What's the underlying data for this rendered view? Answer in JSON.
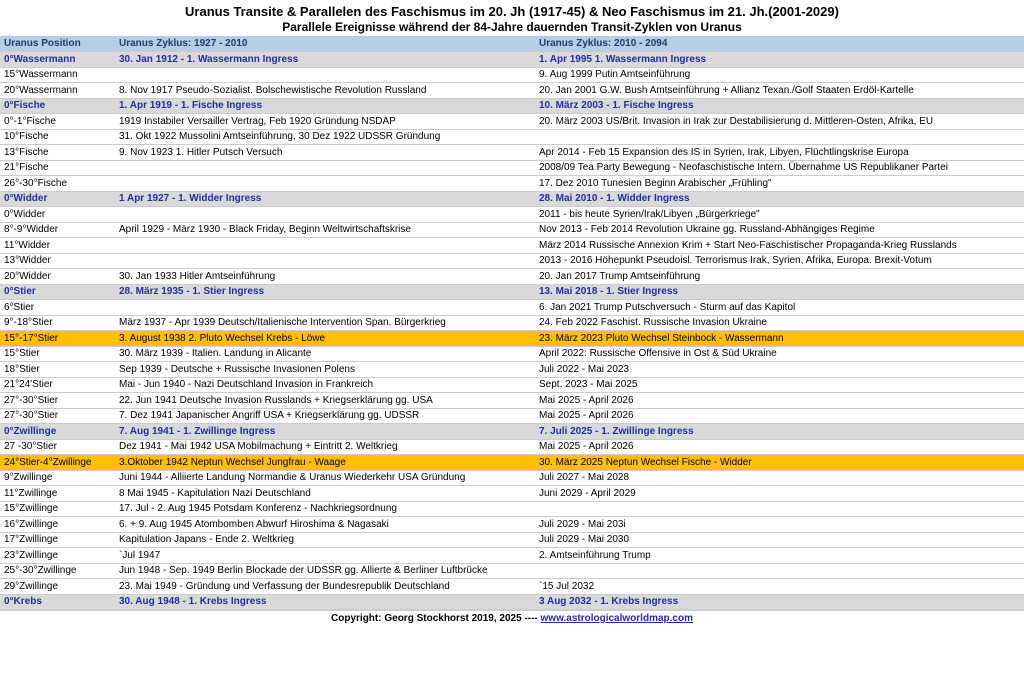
{
  "title": "Uranus Transite & Parallelen des Faschismus im 20. Jh (1917-45) & Neo Faschismus im 21. Jh.(2001-2029)",
  "subtitle": "Parallele Ereignisse während der 84-Jahre dauernden Transit-Zyklen von Uranus",
  "columns": {
    "pos": "Uranus Position",
    "cycle1": "Uranus Zyklus: 1927 - 2010",
    "cycle2": "Uranus Zyklus: 2010 - 2094"
  },
  "rows": [
    {
      "cls": "hl-gray ingress",
      "pos": "0°Wassermann",
      "c1": "30. Jan 1912 - 1. Wassermann Ingress",
      "c2": "1. Apr 1995 1. Wassermann Ingress"
    },
    {
      "cls": "",
      "pos": "15°Wassermann",
      "c1": "",
      "c2": "9. Aug 1999 Putin Amtseinführung"
    },
    {
      "cls": "",
      "pos": "20°Wassermann",
      "c1": "8. Nov 1917 Pseudo-Sozialist. Bolschewistische Revolution Russland",
      "c2": "20. Jan 2001 G.W. Bush Amtseinführung + Allianz Texan./Golf Staaten Erdöl-Kartelle"
    },
    {
      "cls": "hl-gray ingress",
      "pos": "0°Fische",
      "c1": "1. Apr 1919 - 1. Fische Ingress",
      "c2": "10. März 2003 - 1. Fische Ingress"
    },
    {
      "cls": "",
      "pos": "0°-1°Fische",
      "c1": "1919 Instabiler Versailler Vertrag, Feb 1920 Gründung NSDAP",
      "c2": "20. März 2003 US/Brit. Invasion in Irak zur Destabilisierung d. Mittleren-Osten, Afrika, EU"
    },
    {
      "cls": "",
      "pos": "10°Fische",
      "c1": "31. Okt 1922 Mussolini Amtseinführung, 30 Dez 1922 UDSSR Gründung",
      "c2": ""
    },
    {
      "cls": "",
      "pos": "13°Fische",
      "c1": "9. Nov 1923 1. Hitler Putsch Versuch",
      "c2": "Apr 2014 - Feb 15 Expansion des IS in Syrien, Irak, Libyen, Flüchtlingskrise Europa"
    },
    {
      "cls": "",
      "pos": "21°Fische",
      "c1": "",
      "c2": "2008/09 Tea Party Bewegung - Neofaschistische Intern. Übernahme US Republikaner Partei"
    },
    {
      "cls": "",
      "pos": "26°-30°Fische",
      "c1": "",
      "c2": "17. Dez 2010 Tunesien Beginn Arabischer „Frühling\""
    },
    {
      "cls": "hl-gray ingress",
      "pos": "0°Widder",
      "c1": "1 Apr 1927 - 1. Widder Ingress",
      "c2": "28. Mai 2010 - 1. Widder Ingress"
    },
    {
      "cls": "",
      "pos": "0°Widder",
      "c1": "",
      "c2": "2011 - bis heute  Syrien/Irak/Libyen „Bürgerkriege\""
    },
    {
      "cls": "",
      "pos": "8°-9°Widder",
      "c1": "April 1929 - März 1930 - Black Friday, Beginn Weltwirtschaftskrise",
      "c2": "Nov 2013 - Feb 2014  Revolution Ukraine gg. Russland-Abhängiges Regime"
    },
    {
      "cls": "",
      "pos": "11°Widder",
      "c1": "",
      "c2": "März 2014 Russische Annexion Krim + Start Neo-Faschistischer Propaganda-Krieg Russlands"
    },
    {
      "cls": "",
      "pos": "13°Widder",
      "c1": "",
      "c2": "2013 - 2016 Höhepunkt Pseudoisl. Terrorismus Irak, Syrien, Afrika, Europa. Brexit-Votum"
    },
    {
      "cls": "",
      "pos": "20°Widder",
      "c1": "30. Jan 1933  Hitler Amtseinführung",
      "c2": "20. Jan 2017 Trump Amtseinführung"
    },
    {
      "cls": "hl-gray ingress",
      "pos": "0°Stier",
      "c1": "28. März 1935 - 1. Stier Ingress",
      "c2": "13. Mai 2018 - 1. Stier Ingress"
    },
    {
      "cls": "",
      "pos": "6°Stier",
      "c1": "",
      "c2": "6. Jan 2021 Trump Putschversuch - Sturm auf das Kapitol"
    },
    {
      "cls": "",
      "pos": "9°-18°Stier",
      "c1": "März 1937 - Apr 1939 Deutsch/Italienische Intervention Span. Bürgerkrieg",
      "c2": "24. Feb 2022 Faschist. Russische Invasion Ukraine"
    },
    {
      "cls": "hl-gold",
      "pos": "15°-17°Stier",
      "c1": "3. August 1938 2. Pluto Wechsel Krebs - Löwe",
      "c2": "23. März 2023 Pluto Wechsel Steinbock - Wassermann"
    },
    {
      "cls": "",
      "pos": "15°Stier",
      "c1": "30. März 1939 - Italien. Landung in Alicante",
      "c2": "April 2022: Russische Offensive in Ost & Süd Ukraine"
    },
    {
      "cls": "",
      "pos": "18°Stier",
      "c1": "Sep 1939 - Deutsche + Russische Invasionen Polens",
      "c2": "Juli 2022 - Mai 2023"
    },
    {
      "cls": "",
      "pos": "21°24'Stier",
      "c1": "Mai - Jun 1940 - Nazi Deutschland Invasion in Frankreich",
      "c2": "Sept. 2023 - Mai 2025"
    },
    {
      "cls": "",
      "pos": "27°-30°Stier",
      "c1": "22. Jun 1941 Deutsche Invasion Russlands + Kriegserklärung gg. USA",
      "c2": "Mai 2025 - April 2026"
    },
    {
      "cls": "",
      "pos": "27°-30°Stier",
      "c1": "7. Dez 1941 Japanischer Angriff USA + Kriegserklärung gg. UDSSR",
      "c2": "Mai 2025 - April 2026"
    },
    {
      "cls": "hl-gray ingress",
      "pos": "0°Zwillinge",
      "c1": "7. Aug 1941 - 1. Zwillinge Ingress",
      "c2": "7. Juli 2025 - 1. Zwillinge Ingress"
    },
    {
      "cls": "",
      "pos": "27 -30°Stier",
      "c1": "Dez 1941 - Mai 1942 USA Mobilmachung + Eintritt 2. Weltkrieg",
      "c2": "Mai 2025 - April 2026"
    },
    {
      "cls": "hl-gold",
      "pos": "24°Stier-4°Zwillinge",
      "c1": "3.Oktober 1942 Neptun Wechsel Jungfrau - Waage",
      "c2": "30. März 2025 Neptun Wechsel Fische - Widder"
    },
    {
      "cls": "",
      "pos": "9°Zwillinge",
      "c1": "Juni 1944 - Alliierte Landung Normandie & Uranus Wiederkehr USA Gründung",
      "c2": "Juli 2027 - Mai 2028"
    },
    {
      "cls": "",
      "pos": "11°Zwillinge",
      "c1": "8 Mai 1945 - Kapitulation Nazi Deutschland",
      "c2": "Juni 2029 - April 2029"
    },
    {
      "cls": "",
      "pos": "15°Zwillinge",
      "c1": "17. Jul - 2. Aug 1945 Potsdam Konferenz - Nachkriegsordnung",
      "c2": ""
    },
    {
      "cls": "",
      "pos": "16°Zwillinge",
      "c1": "6. + 9. Aug 1945 Atombomben Abwurf  Hiroshima & Nagasaki",
      "c2": "Juli 2029 - Mai 203i"
    },
    {
      "cls": "",
      "pos": "17°Zwillinge",
      "c1": "Kapitulation Japans - Ende 2. Weltkrieg",
      "c2": "Juli 2029 - Mai 2030"
    },
    {
      "cls": "",
      "pos": "23°Zwillinge",
      "c1": "`Jul 1947",
      "c2": "2. Amtseinführung Trump"
    },
    {
      "cls": "",
      "pos": "25°-30°Zwillinge",
      "c1": "Jun 1948 - Sep. 1949  Berlin Blockade der UDSSR gg. Allierte &  Berliner Luftbrücke",
      "c2": ""
    },
    {
      "cls": "",
      "pos": "29°Zwillinge",
      "c1": "23. Mai 1949 - Gründung und Verfassung der Bundesrepublik Deutschland",
      "c2": "`15 Jul 2032"
    },
    {
      "cls": "hl-gray ingress",
      "pos": "0°Krebs",
      "c1": "30. Aug 1948 - 1. Krebs Ingress",
      "c2": "3 Aug 2032 - 1. Krebs Ingress"
    }
  ],
  "footer": {
    "text": "Copyright: Georg Stockhorst 2019, 2025 ---- ",
    "link_text": "www.astrologicalworldmap.com"
  }
}
